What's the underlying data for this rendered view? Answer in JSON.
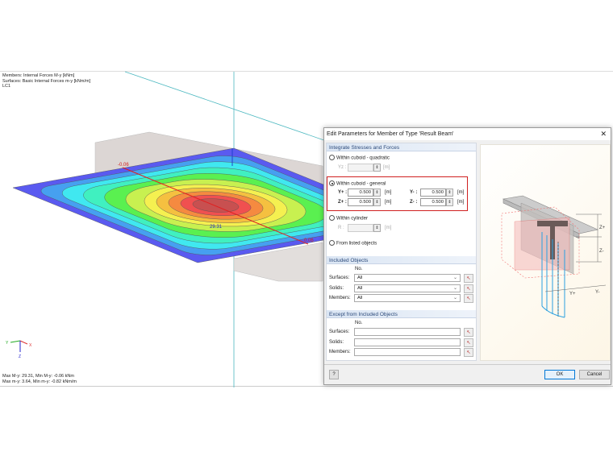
{
  "viewport": {
    "info_lines": [
      "Members: Internal Forces M-y [kNm]",
      "Surfaces: Basic Internal Forces m-y [kNm/m]",
      "LC1"
    ],
    "summary_lines": [
      "Max M-y: 29.31, Min M-y: -0.06 kNm",
      "Max m-y: 3.64, Min m-y: -0.82 kNm/m"
    ],
    "labels": {
      "min": "-0.06",
      "max": "29.31",
      "end": "0.06",
      "axis_x": "X",
      "axis_y": "Y",
      "axis_z": "Z",
      "axis_z2": "Z"
    },
    "contour_colors": [
      "#5a5af0",
      "#46a0f0",
      "#40e8f0",
      "#40f0c0",
      "#5af050",
      "#c8f050",
      "#f5f050",
      "#f5c040",
      "#f58a40",
      "#f05050",
      "#c85050"
    ]
  },
  "dialog": {
    "title": "Edit Parameters for Member of Type 'Result Beam'",
    "close_icon": "close-icon",
    "integrate": {
      "header": "Integrate Stresses and Forces",
      "options": [
        "Within cuboid - quadratic",
        "Within cuboid - general",
        "Within cylinder",
        "From listed objects"
      ],
      "selected": "Within cuboid - general",
      "yz_label": "Yz :",
      "unit": "[m]",
      "r_label": "R :",
      "yplus_label": "Y+ :",
      "yplus": "0.500",
      "yminus_label": "Y- :",
      "yminus": "0.500",
      "zplus_label": "Z+ :",
      "zplus": "0.500",
      "zminus_label": "Z- :",
      "zminus": "0.500",
      "highlight_color": "#d02020"
    },
    "included": {
      "header": "Included Objects",
      "no": "No.",
      "rows": [
        {
          "label": "Surfaces:",
          "value": "All"
        },
        {
          "label": "Solids:",
          "value": "All"
        },
        {
          "label": "Members:",
          "value": "All"
        }
      ]
    },
    "except": {
      "header": "Except from Included Objects",
      "no": "No.",
      "rows": [
        {
          "label": "Surfaces:",
          "value": ""
        },
        {
          "label": "Solids:",
          "value": ""
        },
        {
          "label": "Members:",
          "value": ""
        }
      ]
    },
    "diagram": {
      "zplus": "Z+",
      "zminus": "Z-",
      "yplus": "Y+",
      "yminus": "Y-"
    },
    "ok": "OK",
    "cancel": "Cancel"
  }
}
